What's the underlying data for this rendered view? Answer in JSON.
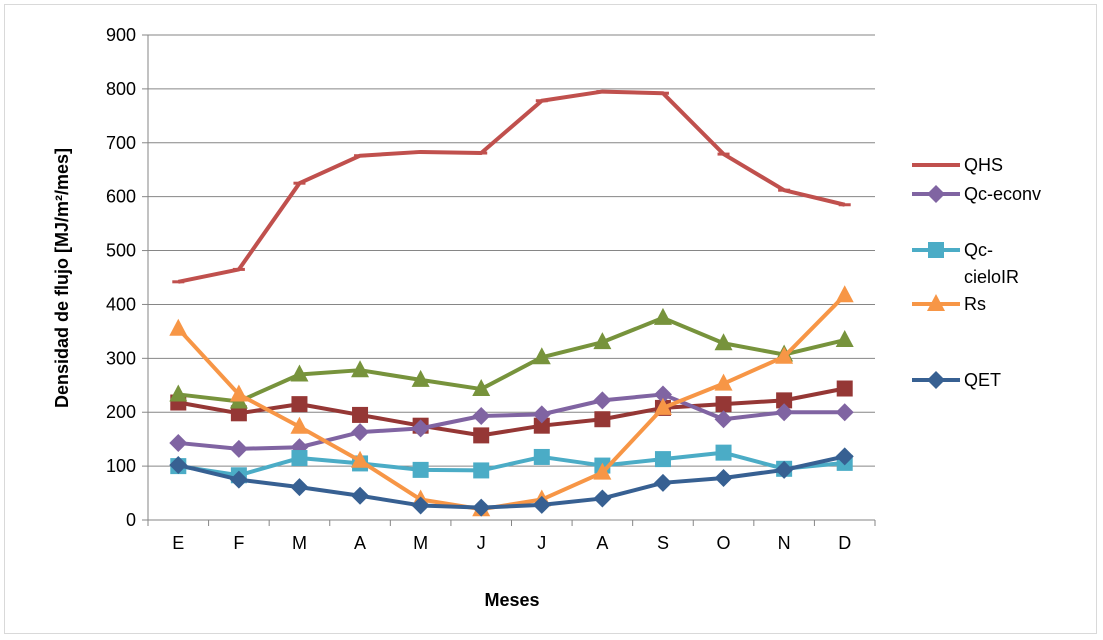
{
  "chart_data": {
    "type": "line",
    "title": "",
    "xlabel": "Meses",
    "ylabel": "Densidad de flujo [MJ/m²/mes]",
    "ylim": [
      0,
      900
    ],
    "yticks": [
      0,
      100,
      200,
      300,
      400,
      500,
      600,
      700,
      800,
      900
    ],
    "grid": true,
    "legend_position": "right",
    "categories": [
      "E",
      "F",
      "M",
      "A",
      "M",
      "J",
      "J",
      "A",
      "S",
      "O",
      "N",
      "D"
    ],
    "series": [
      {
        "name": "QHS",
        "color": "#c0504d",
        "marker": "dash",
        "values": [
          442,
          465,
          625,
          676,
          683,
          681,
          778,
          795,
          792,
          679,
          612,
          585
        ]
      },
      {
        "name": "",
        "color": "#953735",
        "marker": "square",
        "values": [
          218,
          198,
          215,
          195,
          175,
          157,
          175,
          187,
          208,
          215,
          222,
          244
        ]
      },
      {
        "name": "",
        "color": "#77933c",
        "marker": "triangle",
        "values": [
          233,
          220,
          270,
          278,
          260,
          243,
          302,
          330,
          375,
          328,
          307,
          334
        ]
      },
      {
        "name": "Qc-econv",
        "color": "#8064a2",
        "marker": "diamond",
        "values": [
          143,
          132,
          135,
          163,
          170,
          193,
          196,
          222,
          233,
          187,
          200,
          200
        ]
      },
      {
        "name": "Qc-cieloIR",
        "color": "#4bacc6",
        "marker": "square",
        "values": [
          100,
          83,
          115,
          105,
          93,
          92,
          117,
          101,
          113,
          125,
          95,
          106
        ]
      },
      {
        "name": "Rs",
        "color": "#f79646",
        "marker": "triangle",
        "values": [
          355,
          233,
          173,
          110,
          38,
          20,
          38,
          88,
          208,
          253,
          303,
          417
        ]
      },
      {
        "name": "QET",
        "color": "#376092",
        "marker": "diamond",
        "values": [
          102,
          75,
          61,
          45,
          27,
          23,
          28,
          40,
          69,
          78,
          93,
          118
        ]
      }
    ],
    "legend": [
      {
        "label": "QHS",
        "series": 0
      },
      {
        "label": "Qc-econv",
        "series": 3
      },
      {
        "label_line1": "Qc-",
        "label_line2": "cieloIR",
        "series": 4
      },
      {
        "label": "Rs",
        "series": 5
      },
      {
        "label": "QET",
        "series": 6
      }
    ]
  }
}
